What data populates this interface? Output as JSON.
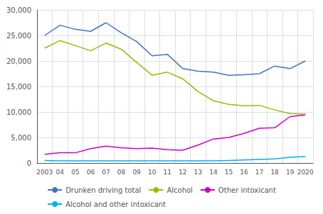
{
  "chart_data": {
    "type": "line",
    "categories": [
      "2003",
      "04",
      "05",
      "06",
      "07",
      "08",
      "09",
      "10",
      "11",
      "12",
      "13",
      "14",
      "15",
      "16",
      "17",
      "18",
      "19",
      "2020"
    ],
    "series": [
      {
        "name": "Drunken driving total",
        "color": "#4472C4",
        "values": [
          25000,
          27000,
          26200,
          25800,
          27500,
          25500,
          23800,
          21000,
          21300,
          18500,
          18000,
          17800,
          17200,
          17300,
          17500,
          19000,
          18500,
          20000
        ]
      },
      {
        "name": "Alcohol",
        "color": "#9BBB00",
        "values": [
          22500,
          24000,
          23000,
          22000,
          23500,
          22300,
          19700,
          17200,
          17800,
          16500,
          14000,
          12200,
          11500,
          11200,
          11300,
          10400,
          9700,
          9600
        ]
      },
      {
        "name": "Other intoxicant",
        "color": "#CC00CC",
        "values": [
          1700,
          2000,
          2000,
          2800,
          3300,
          3000,
          2800,
          2900,
          2600,
          2500,
          3500,
          4700,
          5000,
          5800,
          6800,
          6900,
          9100,
          9400
        ]
      },
      {
        "name": "Alcohol and other intoxicant",
        "color": "#00B0F0",
        "values": [
          500,
          400,
          400,
          400,
          400,
          400,
          400,
          400,
          400,
          400,
          400,
          400,
          500,
          600,
          700,
          800,
          1100,
          1300
        ]
      }
    ],
    "ylim": [
      0,
      30000
    ],
    "yticks": [
      0,
      {
        "value": 5000,
        "label": "5,000"
      },
      {
        "value": 10000,
        "label": "10,000"
      },
      {
        "value": 15000,
        "label": "15,000"
      },
      {
        "value": 20000,
        "label": "20,000"
      },
      {
        "value": 25000,
        "label": "25,000"
      },
      {
        "value": 30000,
        "label": "30,000"
      }
    ],
    "grid": true,
    "legend": "bottom"
  }
}
